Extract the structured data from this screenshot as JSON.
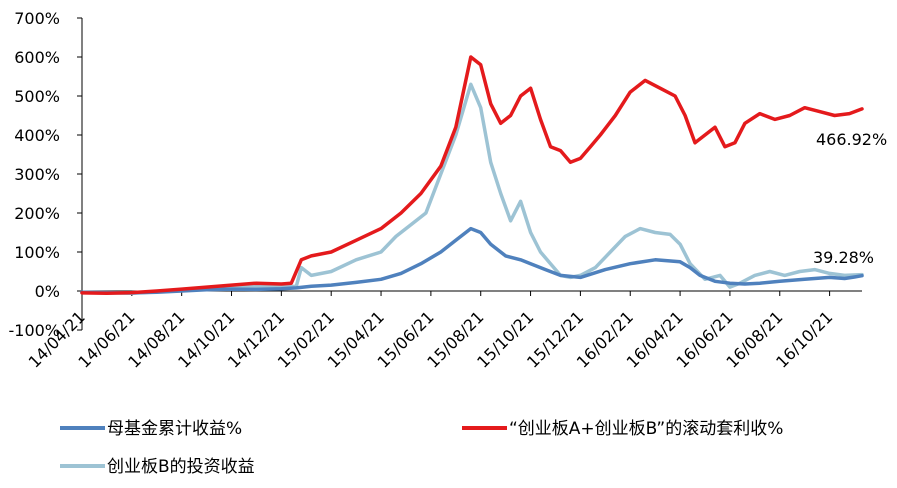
{
  "chart_data": {
    "type": "line",
    "title": "",
    "xlabel": "",
    "ylabel": "",
    "ylim": [
      -100,
      700
    ],
    "y_ticks": [
      "-100%",
      "0%",
      "100%",
      "200%",
      "300%",
      "400%",
      "500%",
      "600%",
      "700%"
    ],
    "x_ticks": [
      "14/04/21",
      "14/06/21",
      "14/08/21",
      "14/10/21",
      "14/12/21",
      "15/02/21",
      "15/04/21",
      "15/06/21",
      "15/08/21",
      "15/10/21",
      "15/12/21",
      "16/02/21",
      "16/04/21",
      "16/06/21",
      "16/08/21",
      "16/10/21"
    ],
    "grid": false,
    "legend_position": "bottom",
    "x_index_range": [
      0,
      15.65
    ],
    "series": [
      {
        "name": "母基金累计收益%",
        "color": "#4F81BD",
        "end_label": "39.28%",
        "points": [
          [
            0,
            -3
          ],
          [
            0.5,
            -4
          ],
          [
            1,
            -5
          ],
          [
            1.5,
            -3
          ],
          [
            2,
            0
          ],
          [
            2.5,
            3
          ],
          [
            3,
            5
          ],
          [
            3.5,
            4
          ],
          [
            4,
            6
          ],
          [
            4.3,
            8
          ],
          [
            4.6,
            12
          ],
          [
            5,
            15
          ],
          [
            5.5,
            22
          ],
          [
            6,
            30
          ],
          [
            6.4,
            45
          ],
          [
            6.8,
            70
          ],
          [
            7.2,
            100
          ],
          [
            7.5,
            130
          ],
          [
            7.8,
            160
          ],
          [
            8.0,
            150
          ],
          [
            8.2,
            120
          ],
          [
            8.5,
            90
          ],
          [
            8.8,
            80
          ],
          [
            9.0,
            70
          ],
          [
            9.3,
            55
          ],
          [
            9.6,
            40
          ],
          [
            10.0,
            35
          ],
          [
            10.5,
            55
          ],
          [
            11.0,
            70
          ],
          [
            11.5,
            80
          ],
          [
            12.0,
            75
          ],
          [
            12.2,
            60
          ],
          [
            12.4,
            40
          ],
          [
            12.7,
            25
          ],
          [
            13.0,
            20
          ],
          [
            13.3,
            18
          ],
          [
            13.6,
            20
          ],
          [
            14.0,
            25
          ],
          [
            14.5,
            30
          ],
          [
            15.0,
            35
          ],
          [
            15.3,
            32
          ],
          [
            15.5,
            36
          ],
          [
            15.65,
            39.28
          ]
        ]
      },
      {
        "name": "“创业板A+创业板B”的滚动套利收%",
        "color": "#E41A1C",
        "end_label": "466.92%",
        "points": [
          [
            0,
            -5
          ],
          [
            0.5,
            -6
          ],
          [
            1,
            -4
          ],
          [
            1.5,
            0
          ],
          [
            2,
            5
          ],
          [
            2.5,
            10
          ],
          [
            3,
            15
          ],
          [
            3.5,
            20
          ],
          [
            4,
            18
          ],
          [
            4.2,
            20
          ],
          [
            4.4,
            80
          ],
          [
            4.6,
            90
          ],
          [
            5,
            100
          ],
          [
            5.5,
            130
          ],
          [
            6,
            160
          ],
          [
            6.4,
            200
          ],
          [
            6.8,
            250
          ],
          [
            7.2,
            320
          ],
          [
            7.5,
            420
          ],
          [
            7.8,
            600
          ],
          [
            8.0,
            580
          ],
          [
            8.2,
            480
          ],
          [
            8.4,
            430
          ],
          [
            8.6,
            450
          ],
          [
            8.8,
            500
          ],
          [
            9.0,
            520
          ],
          [
            9.2,
            440
          ],
          [
            9.4,
            370
          ],
          [
            9.6,
            360
          ],
          [
            9.8,
            330
          ],
          [
            10.0,
            340
          ],
          [
            10.2,
            370
          ],
          [
            10.4,
            400
          ],
          [
            10.7,
            450
          ],
          [
            11.0,
            510
          ],
          [
            11.3,
            540
          ],
          [
            11.6,
            520
          ],
          [
            11.9,
            500
          ],
          [
            12.1,
            450
          ],
          [
            12.3,
            380
          ],
          [
            12.5,
            400
          ],
          [
            12.7,
            420
          ],
          [
            12.9,
            370
          ],
          [
            13.1,
            380
          ],
          [
            13.3,
            430
          ],
          [
            13.6,
            455
          ],
          [
            13.9,
            440
          ],
          [
            14.2,
            450
          ],
          [
            14.5,
            470
          ],
          [
            14.8,
            460
          ],
          [
            15.1,
            450
          ],
          [
            15.4,
            455
          ],
          [
            15.65,
            466.92
          ]
        ]
      },
      {
        "name": "创业板B的投资收益",
        "color": "#9DC3D4",
        "end_label": "",
        "points": [
          [
            0,
            -4
          ],
          [
            0.5,
            -5
          ],
          [
            1,
            -6
          ],
          [
            1.5,
            -2
          ],
          [
            2,
            2
          ],
          [
            2.5,
            6
          ],
          [
            3,
            10
          ],
          [
            3.5,
            12
          ],
          [
            4,
            10
          ],
          [
            4.3,
            12
          ],
          [
            4.4,
            60
          ],
          [
            4.6,
            40
          ],
          [
            5,
            50
          ],
          [
            5.5,
            80
          ],
          [
            6,
            100
          ],
          [
            6.3,
            140
          ],
          [
            6.6,
            170
          ],
          [
            6.9,
            200
          ],
          [
            7.2,
            300
          ],
          [
            7.5,
            400
          ],
          [
            7.8,
            530
          ],
          [
            8.0,
            470
          ],
          [
            8.2,
            330
          ],
          [
            8.4,
            250
          ],
          [
            8.6,
            180
          ],
          [
            8.8,
            230
          ],
          [
            9.0,
            150
          ],
          [
            9.2,
            100
          ],
          [
            9.4,
            70
          ],
          [
            9.6,
            40
          ],
          [
            9.8,
            35
          ],
          [
            10.0,
            40
          ],
          [
            10.3,
            60
          ],
          [
            10.6,
            100
          ],
          [
            10.9,
            140
          ],
          [
            11.2,
            160
          ],
          [
            11.5,
            150
          ],
          [
            11.8,
            145
          ],
          [
            12.0,
            120
          ],
          [
            12.2,
            70
          ],
          [
            12.5,
            30
          ],
          [
            12.8,
            40
          ],
          [
            13.0,
            10
          ],
          [
            13.2,
            20
          ],
          [
            13.5,
            40
          ],
          [
            13.8,
            50
          ],
          [
            14.1,
            40
          ],
          [
            14.4,
            50
          ],
          [
            14.7,
            55
          ],
          [
            15.0,
            45
          ],
          [
            15.3,
            40
          ],
          [
            15.65,
            42
          ]
        ]
      }
    ]
  }
}
